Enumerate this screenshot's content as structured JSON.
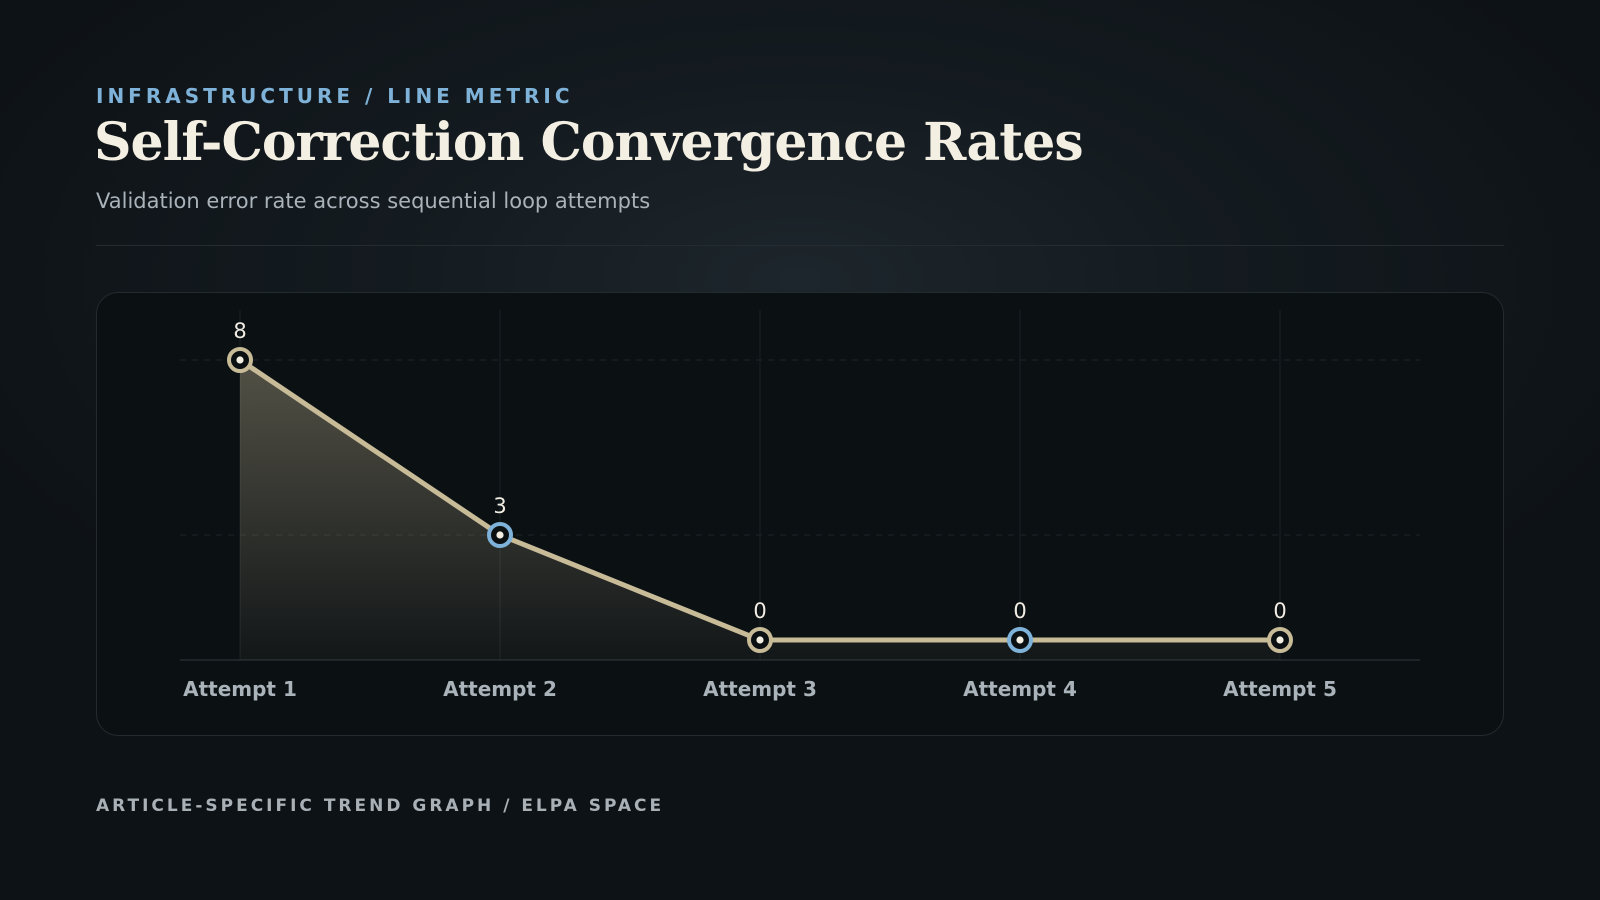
{
  "header": {
    "eyebrow": "INFRASTRUCTURE / LINE METRIC",
    "title": "Self-Correction Convergence Rates",
    "subtitle": "Validation error rate across sequential loop attempts"
  },
  "footer": {
    "caption": "ARTICLE-SPECIFIC TREND GRAPH / ELPA SPACE"
  },
  "colors": {
    "line": "#c8bb98",
    "marker_primary": "#c8bb98",
    "marker_accent": "#7fb2d8",
    "eyebrow": "#7fb2d8"
  },
  "chart_data": {
    "type": "line",
    "title": "",
    "categories": [
      "Attempt 1",
      "Attempt 2",
      "Attempt 3",
      "Attempt 4",
      "Attempt 5"
    ],
    "values": [
      8,
      3,
      0,
      0,
      0
    ],
    "data_labels": [
      "8",
      "3",
      "0",
      "0",
      "0"
    ],
    "marker_styles": [
      "primary",
      "accent",
      "primary",
      "accent",
      "primary"
    ],
    "xlabel": "",
    "ylabel": "",
    "ylim": [
      0,
      10
    ],
    "grid": true,
    "legend": "none",
    "area_fill": true
  }
}
